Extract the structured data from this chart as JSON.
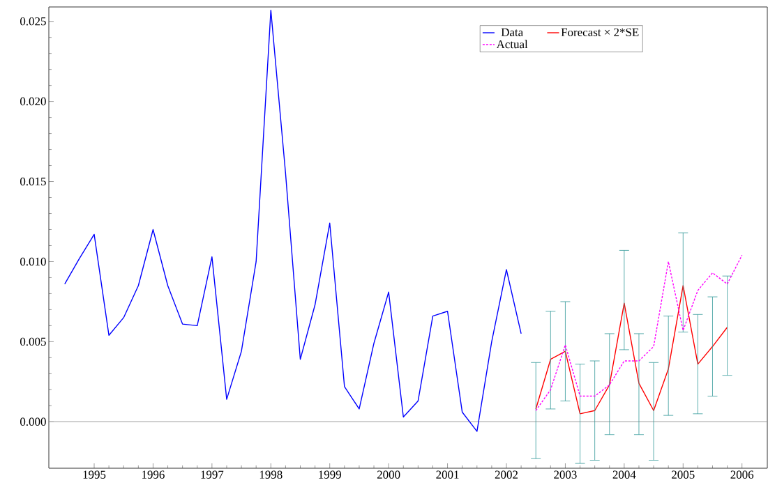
{
  "chart_data": {
    "type": "line",
    "series": [
      {
        "name": "Data",
        "color": "#0000ff",
        "line_style": "solid",
        "x": [
          1994.5,
          1994.75,
          1995,
          1995.25,
          1995.5,
          1995.75,
          1996,
          1996.25,
          1996.5,
          1996.75,
          1997,
          1997.25,
          1997.5,
          1997.75,
          1998,
          1998.25,
          1998.5,
          1998.75,
          1999,
          1999.25,
          1999.5,
          1999.75,
          2000,
          2000.25,
          2000.5,
          2000.75,
          2001,
          2001.25,
          2001.5,
          2001.75,
          2002,
          2002.25
        ],
        "values": [
          0.0086,
          0.0102,
          0.0117,
          0.0054,
          0.0065,
          0.0085,
          0.012,
          0.0085,
          0.0061,
          0.006,
          0.0103,
          0.0014,
          0.0044,
          0.01,
          0.0257,
          0.0155,
          0.0039,
          0.0073,
          0.0124,
          0.0022,
          0.0008,
          0.0049,
          0.0081,
          0.0003,
          0.0013,
          0.0066,
          0.0069,
          0.0006,
          -0.0006,
          0.005,
          0.0095,
          0.0055
        ]
      },
      {
        "name": "Forecast × 2*SE",
        "color": "#ff0000",
        "line_style": "solid",
        "x": [
          2002.5,
          2002.75,
          2003,
          2003.25,
          2003.5,
          2003.75,
          2004,
          2004.25,
          2004.5,
          2004.75,
          2005,
          2005.25,
          2005.5,
          2005.75
        ],
        "values": [
          0.0008,
          0.0039,
          0.0044,
          0.0005,
          0.0007,
          0.0023,
          0.0074,
          0.0024,
          0.0007,
          0.0033,
          0.0085,
          0.0036,
          0.0047,
          0.0059
        ],
        "errors": [
          [
            -0.0023,
            0.0037
          ],
          [
            0.0008,
            0.0069
          ],
          [
            0.0013,
            0.0075
          ],
          [
            -0.0026,
            0.0036
          ],
          [
            -0.0024,
            0.0038
          ],
          [
            -0.0008,
            0.0055
          ],
          [
            0.0045,
            0.0107
          ],
          [
            -0.0008,
            0.0055
          ],
          [
            -0.0024,
            0.0037
          ],
          [
            0.0004,
            0.0066
          ],
          [
            0.0056,
            0.0118
          ],
          [
            0.0005,
            0.0067
          ],
          [
            0.0016,
            0.0078
          ],
          [
            0.0029,
            0.0091
          ]
        ]
      },
      {
        "name": "Actual",
        "color": "#ff00ff",
        "line_style": "dashed",
        "x": [
          2002.5,
          2002.75,
          2003,
          2003.25,
          2003.5,
          2003.75,
          2004,
          2004.25,
          2004.5,
          2004.75,
          2005,
          2005.25,
          2005.5,
          2005.75,
          2006
        ],
        "values": [
          0.0007,
          0.002,
          0.0048,
          0.0016,
          0.0016,
          0.0023,
          0.0038,
          0.0038,
          0.0047,
          0.01,
          0.0057,
          0.0082,
          0.0093,
          0.0086,
          0.0104
        ]
      }
    ],
    "xlim": [
      1994.23,
      2006.43
    ],
    "ylim": [
      -0.0029,
      0.0259
    ],
    "xticks": [
      1995,
      1996,
      1997,
      1998,
      1999,
      2000,
      2001,
      2002,
      2003,
      2004,
      2005,
      2006
    ],
    "yticks": [
      {
        "value": 0,
        "label": "0.000"
      },
      {
        "value": 0.005,
        "label": "0.005"
      },
      {
        "value": 0.01,
        "label": "0.010"
      },
      {
        "value": 0.015,
        "label": "0.015"
      },
      {
        "value": 0.02,
        "label": "0.020"
      },
      {
        "value": 0.025,
        "label": "0.025"
      }
    ],
    "ref_lines": [
      {
        "axis": "y",
        "value": 0,
        "color": "#999999"
      }
    ],
    "legend": "top right"
  }
}
